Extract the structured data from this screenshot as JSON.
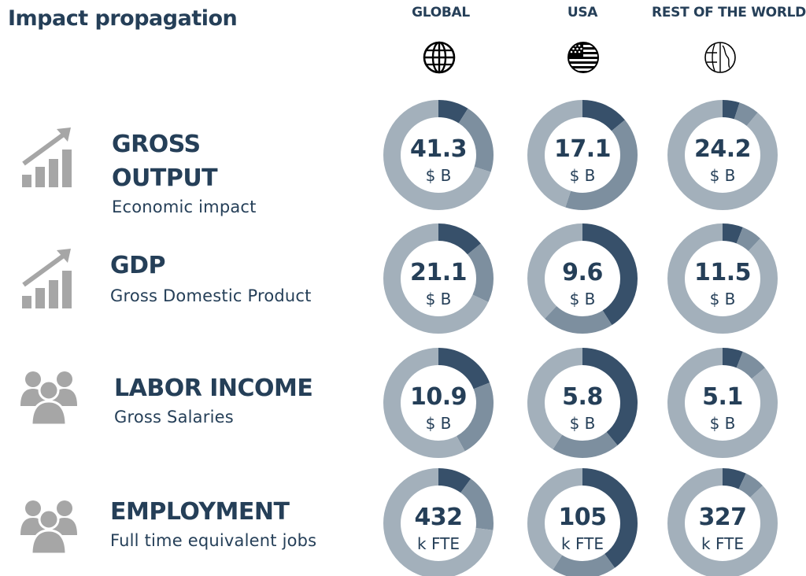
{
  "title": "Impact propagation",
  "columns": [
    {
      "label": "GLOBAL",
      "icon": "globe-icon"
    },
    {
      "label": "USA",
      "icon": "us-flag-globe-icon"
    },
    {
      "label": "REST OF THE WORLD",
      "icon": "world-icon"
    }
  ],
  "rows": [
    {
      "name_line1": "GROSS",
      "name_line2": "OUTPUT",
      "description": "Economic impact",
      "icon": "growth-chart-icon"
    },
    {
      "name_line1": "GDP",
      "description": "Gross Domestic Product",
      "icon": "growth-chart-icon"
    },
    {
      "name_line1": "LABOR INCOME",
      "description": "Gross Salaries",
      "icon": "people-group-icon"
    },
    {
      "name_line1": "EMPLOYMENT",
      "description": "Full time equivalent jobs",
      "icon": "people-group-icon"
    }
  ],
  "colors": {
    "dark": "#37506a",
    "mid": "#7d8f9f",
    "light": "#a3b0bb",
    "text": "#253f58",
    "icon_gray": "#a6a6a6"
  },
  "chart_data": {
    "type": "donut",
    "units": [
      "$ B",
      "$ B",
      "$ B",
      "k FTE"
    ],
    "columns": [
      "GLOBAL",
      "USA",
      "REST OF THE WORLD"
    ],
    "rows": [
      "GROSS OUTPUT",
      "GDP",
      "LABOR INCOME",
      "EMPLOYMENT"
    ],
    "values": [
      [
        "41.3",
        "17.1",
        "24.2"
      ],
      [
        "21.1",
        "9.6",
        "11.5"
      ],
      [
        "10.9",
        "5.8",
        "5.1"
      ],
      [
        "432",
        "105",
        "327"
      ]
    ],
    "segments": [
      [
        [
          0.09,
          0.21,
          0.7
        ],
        [
          0.14,
          0.41,
          0.45
        ],
        [
          0.05,
          0.06,
          0.89
        ]
      ],
      [
        [
          0.14,
          0.18,
          0.68
        ],
        [
          0.41,
          0.21,
          0.38
        ],
        [
          0.06,
          0.06,
          0.88
        ]
      ],
      [
        [
          0.19,
          0.23,
          0.58
        ],
        [
          0.39,
          0.2,
          0.41
        ],
        [
          0.06,
          0.08,
          0.86
        ]
      ],
      [
        [
          0.1,
          0.17,
          0.73
        ],
        [
          0.4,
          0.19,
          0.41
        ],
        [
          0.07,
          0.06,
          0.87
        ]
      ]
    ]
  }
}
